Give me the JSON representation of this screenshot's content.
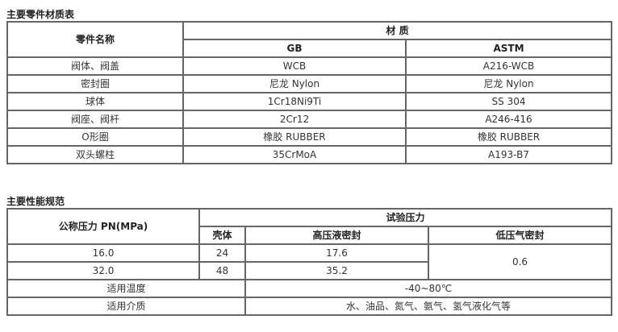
{
  "materials": {
    "title": "主要零件材质表",
    "header": {
      "part_name": "零件名称",
      "material": "材 质",
      "gb": "GB",
      "astm": "ASTM"
    },
    "rows": [
      {
        "part": "阀体、阀盖",
        "gb": "WCB",
        "astm": "A216-WCB"
      },
      {
        "part": "密封圈",
        "gb": "尼龙 Nylon",
        "astm": "尼龙 Nylon"
      },
      {
        "part": "球体",
        "gb": "1Cr18Ni9Ti",
        "astm": "SS 304"
      },
      {
        "part": "阀座、阀杆",
        "gb": "2Cr12",
        "astm": "A246-416"
      },
      {
        "part": "O形圈",
        "gb": "橡胶 RUBBER",
        "astm": "橡胶 RUBBER"
      },
      {
        "part": "双头螺柱",
        "gb": "35CrMoA",
        "astm": "A193-B7"
      }
    ]
  },
  "performance": {
    "title": "主要性能规范",
    "header": {
      "nominal_pressure": "公称压力 PN(MPa)",
      "test_pressure": "试验压力",
      "shell": "壳体",
      "hp_liquid_seal": "高压液密封",
      "lp_gas_seal": "低压气密封"
    },
    "rows": [
      {
        "pn": "16.0",
        "shell": "24",
        "hp": "17.6"
      },
      {
        "pn": "32.0",
        "shell": "48",
        "hp": "35.2"
      }
    ],
    "lp_gas_seal_value": "0.6",
    "temperature": {
      "label": "适用温度",
      "value": "-40~80℃"
    },
    "medium": {
      "label": "适用介质",
      "value": "水、油品、氮气、氨气、氢气液化气等"
    }
  }
}
